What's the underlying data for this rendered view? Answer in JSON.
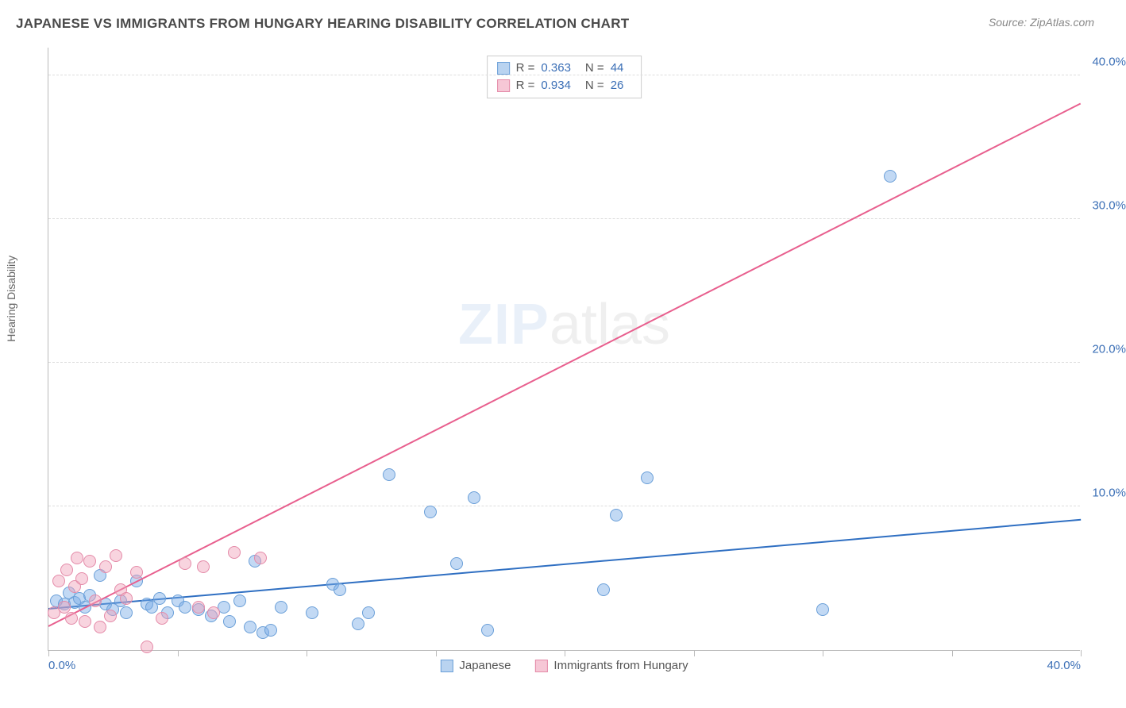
{
  "header": {
    "title": "JAPANESE VS IMMIGRANTS FROM HUNGARY HEARING DISABILITY CORRELATION CHART",
    "source": "Source: ZipAtlas.com"
  },
  "chart": {
    "type": "scatter",
    "ylabel": "Hearing Disability",
    "watermark_zip": "ZIP",
    "watermark_atlas": "atlas",
    "background_color": "#ffffff",
    "grid_color": "#dddddd",
    "axis_color": "#bbbbbb",
    "xlim": [
      0,
      40
    ],
    "ylim": [
      0,
      42
    ],
    "ytick_values": [
      10,
      20,
      30,
      40
    ],
    "ytick_labels": [
      "10.0%",
      "20.0%",
      "30.0%",
      "40.0%"
    ],
    "xtick_values": [
      0,
      5,
      10,
      15,
      20,
      25,
      30,
      35,
      40
    ],
    "xtick_labels_shown": {
      "0": "0.0%",
      "40": "40.0%"
    },
    "ytick_label_color": "#3b6fb6",
    "xtick_label_color": "#3b6fb6",
    "marker_radius": 8,
    "marker_border_width": 1.2,
    "series": [
      {
        "name": "Japanese",
        "color_fill": "rgba(120,170,230,0.45)",
        "color_stroke": "#6a9fd8",
        "swatch_fill": "#b9d3f0",
        "swatch_stroke": "#6a9fd8",
        "r_value": "0.363",
        "n_value": "44",
        "trend": {
          "x1": 0,
          "y1": 2.8,
          "x2": 40,
          "y2": 9.0,
          "color": "#2f6fc2",
          "width": 2
        },
        "points": [
          [
            0.3,
            3.4
          ],
          [
            0.6,
            3.2
          ],
          [
            0.8,
            4.0
          ],
          [
            1.0,
            3.3
          ],
          [
            1.2,
            3.6
          ],
          [
            1.4,
            3.0
          ],
          [
            1.6,
            3.8
          ],
          [
            2.0,
            5.2
          ],
          [
            2.2,
            3.2
          ],
          [
            2.5,
            2.8
          ],
          [
            2.8,
            3.4
          ],
          [
            3.0,
            2.6
          ],
          [
            3.4,
            4.8
          ],
          [
            3.8,
            3.2
          ],
          [
            4.0,
            3.0
          ],
          [
            4.3,
            3.6
          ],
          [
            4.6,
            2.6
          ],
          [
            5.0,
            3.4
          ],
          [
            5.3,
            3.0
          ],
          [
            5.8,
            2.8
          ],
          [
            6.3,
            2.4
          ],
          [
            6.8,
            3.0
          ],
          [
            7.0,
            2.0
          ],
          [
            7.4,
            3.4
          ],
          [
            7.8,
            1.6
          ],
          [
            8.0,
            6.2
          ],
          [
            8.3,
            1.2
          ],
          [
            8.6,
            1.4
          ],
          [
            9.0,
            3.0
          ],
          [
            10.2,
            2.6
          ],
          [
            11.0,
            4.6
          ],
          [
            11.3,
            4.2
          ],
          [
            12.0,
            1.8
          ],
          [
            12.4,
            2.6
          ],
          [
            13.2,
            12.2
          ],
          [
            14.8,
            9.6
          ],
          [
            15.8,
            6.0
          ],
          [
            16.5,
            10.6
          ],
          [
            17.0,
            1.4
          ],
          [
            21.5,
            4.2
          ],
          [
            22.0,
            9.4
          ],
          [
            23.2,
            12.0
          ],
          [
            30.0,
            2.8
          ],
          [
            32.6,
            33.0
          ]
        ]
      },
      {
        "name": "Immigrants from Hungary",
        "color_fill": "rgba(240,160,185,0.45)",
        "color_stroke": "#e48aa8",
        "swatch_fill": "#f6c7d6",
        "swatch_stroke": "#e48aa8",
        "r_value": "0.934",
        "n_value": "26",
        "trend": {
          "x1": 0,
          "y1": 1.6,
          "x2": 40,
          "y2": 38.0,
          "color": "#e85f8e",
          "width": 2
        },
        "points": [
          [
            0.2,
            2.6
          ],
          [
            0.4,
            4.8
          ],
          [
            0.6,
            3.0
          ],
          [
            0.7,
            5.6
          ],
          [
            0.9,
            2.2
          ],
          [
            1.0,
            4.4
          ],
          [
            1.1,
            6.4
          ],
          [
            1.3,
            5.0
          ],
          [
            1.4,
            2.0
          ],
          [
            1.6,
            6.2
          ],
          [
            1.8,
            3.4
          ],
          [
            2.0,
            1.6
          ],
          [
            2.2,
            5.8
          ],
          [
            2.4,
            2.4
          ],
          [
            2.6,
            6.6
          ],
          [
            2.8,
            4.2
          ],
          [
            3.0,
            3.6
          ],
          [
            3.4,
            5.4
          ],
          [
            3.8,
            0.2
          ],
          [
            4.4,
            2.2
          ],
          [
            5.3,
            6.0
          ],
          [
            5.8,
            3.0
          ],
          [
            6.0,
            5.8
          ],
          [
            6.4,
            2.6
          ],
          [
            7.2,
            6.8
          ],
          [
            8.2,
            6.4
          ]
        ]
      }
    ],
    "r_legend_prefix": "R =",
    "n_legend_prefix": "N ="
  }
}
